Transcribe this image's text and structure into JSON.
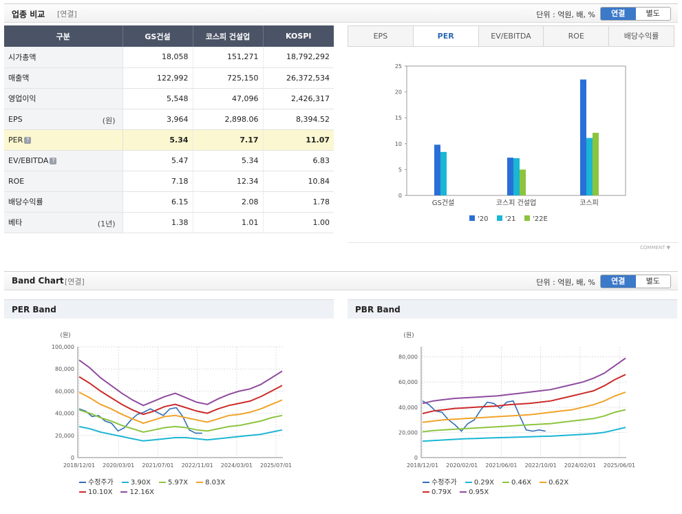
{
  "top": {
    "title": "업종 비교",
    "sub": "[연결]",
    "unit": "단위 : 억원, 배, %",
    "toggle_on": "연결",
    "toggle_off": "별도"
  },
  "table": {
    "headers": [
      "구분",
      "GS건설",
      "코스피 건설업",
      "KOSPI"
    ],
    "rows": [
      {
        "label": "시가총액",
        "unit": "",
        "q": false,
        "values": [
          "18,058",
          "151,271",
          "18,792,292"
        ]
      },
      {
        "label": "매출액",
        "unit": "",
        "q": false,
        "values": [
          "122,992",
          "725,150",
          "26,372,534"
        ]
      },
      {
        "label": "영업이익",
        "unit": "",
        "q": false,
        "values": [
          "5,548",
          "47,096",
          "2,426,317"
        ]
      },
      {
        "label": "EPS",
        "unit": "(원)",
        "q": false,
        "values": [
          "3,964",
          "2,898.06",
          "8,394.52"
        ]
      },
      {
        "label": "PER",
        "unit": "",
        "q": true,
        "values": [
          "5.34",
          "7.17",
          "11.07"
        ]
      },
      {
        "label": "EV/EBITDA",
        "unit": "",
        "q": true,
        "values": [
          "5.47",
          "5.34",
          "6.83"
        ]
      },
      {
        "label": "ROE",
        "unit": "",
        "q": false,
        "values": [
          "7.18",
          "12.34",
          "10.84"
        ]
      },
      {
        "label": "배당수익률",
        "unit": "",
        "q": false,
        "values": [
          "6.15",
          "2.08",
          "1.78"
        ]
      },
      {
        "label": "베타",
        "unit": "(1년)",
        "q": false,
        "values": [
          "1.38",
          "1.01",
          "1.00"
        ]
      }
    ],
    "q_glyph": "?"
  },
  "tabs": [
    "EPS",
    "PER",
    "EV/EBITDA",
    "ROE",
    "배당수익률"
  ],
  "active_tab": "PER",
  "comment_label": "COMMENT",
  "chart_data": [
    {
      "type": "bar",
      "categories": [
        "GS건설",
        "코스피 건설업",
        "코스피"
      ],
      "series": [
        {
          "name": "'20",
          "color": "#2a6fd8",
          "values": [
            9.8,
            7.3,
            22.4
          ]
        },
        {
          "name": "'21",
          "color": "#1ab6d3",
          "values": [
            8.4,
            7.2,
            11.1
          ]
        },
        {
          "name": "'22E",
          "color": "#8cc43f",
          "values": [
            null,
            5.0,
            12.1
          ]
        }
      ],
      "ylim": [
        0,
        25
      ],
      "yticks": [
        0,
        5,
        10,
        15,
        20,
        25
      ],
      "legend": "bottom"
    },
    {
      "type": "line",
      "title": "PER Band",
      "ylabel": "(원)",
      "xticks": [
        "2018/12/01",
        "2020/03/01",
        "2021/07/01",
        "2022/11/01",
        "2024/03/01",
        "2025/07/01"
      ],
      "yticks": [
        0,
        20000,
        40000,
        60000,
        80000,
        100000
      ],
      "ytick_labels": [
        "0",
        "20,000",
        "40,000",
        "60,000",
        "80,000",
        "100,000"
      ],
      "ylim": [
        0,
        100000
      ],
      "series": [
        {
          "name": "수정주가",
          "color": "#2f6db5",
          "values": [
            44000,
            42000,
            37000,
            38000,
            33000,
            31000,
            24000,
            27000,
            34000,
            39000,
            41000,
            44000,
            41000,
            38000,
            44000,
            45000,
            37000,
            25000,
            22000,
            22000
          ]
        },
        {
          "name": "3.90X",
          "color": "#1ab6d3",
          "values": [
            28000,
            26000,
            23000,
            21000,
            19000,
            17000,
            15000,
            16000,
            17000,
            18000,
            18000,
            17000,
            16000,
            17000,
            18000,
            19000,
            20000,
            21000,
            23000,
            25000
          ]
        },
        {
          "name": "5.97X",
          "color": "#8cc43f",
          "values": [
            43000,
            40000,
            36000,
            33000,
            29000,
            26000,
            23000,
            25000,
            27000,
            28000,
            27000,
            25000,
            24000,
            26000,
            28000,
            29000,
            31000,
            33000,
            36000,
            38000
          ]
        },
        {
          "name": "8.03X",
          "color": "#f0a32a",
          "values": [
            59000,
            54000,
            48000,
            44000,
            39000,
            35000,
            31000,
            34000,
            37000,
            38000,
            36000,
            34000,
            32000,
            35000,
            38000,
            39000,
            41000,
            44000,
            48000,
            52000
          ]
        },
        {
          "name": "10.10X",
          "color": "#cc2a2a",
          "values": [
            73000,
            67000,
            60000,
            54000,
            48000,
            43000,
            39000,
            42000,
            46000,
            48000,
            45000,
            42000,
            40000,
            44000,
            47000,
            49000,
            51000,
            55000,
            60000,
            65000
          ]
        },
        {
          "name": "12.16X",
          "color": "#8e4b9e",
          "values": [
            88000,
            81000,
            72000,
            65000,
            58000,
            52000,
            47000,
            51000,
            55000,
            58000,
            54000,
            50000,
            48000,
            53000,
            57000,
            60000,
            62000,
            66000,
            72000,
            78000
          ]
        }
      ],
      "legend": "bottom"
    },
    {
      "type": "line",
      "title": "PBR Band",
      "ylabel": "(원)",
      "xticks": [
        "2018/12/01",
        "2020/02/01",
        "2021/06/01",
        "2022/10/01",
        "2024/02/01",
        "2025/06/01"
      ],
      "yticks": [
        0,
        20000,
        40000,
        60000,
        80000
      ],
      "ytick_labels": [
        "0",
        "20,000",
        "40,000",
        "60,000",
        "80,000"
      ],
      "ylim": [
        0,
        88000
      ],
      "series": [
        {
          "name": "수정주가",
          "color": "#2f6db5",
          "values": [
            45000,
            42000,
            37000,
            36000,
            30000,
            26000,
            21000,
            27000,
            30000,
            38000,
            44000,
            43000,
            39000,
            44000,
            45000,
            33000,
            22000,
            21000,
            22000,
            21000
          ]
        },
        {
          "name": "0.29X",
          "color": "#1ab6d3",
          "values": [
            13000,
            13500,
            14000,
            14500,
            15000,
            15200,
            15500,
            15800,
            16000,
            16300,
            16500,
            16800,
            17000,
            17500,
            18000,
            18500,
            19000,
            20000,
            22000,
            24000
          ]
        },
        {
          "name": "0.46X",
          "color": "#8cc43f",
          "values": [
            20500,
            21500,
            22000,
            22500,
            23000,
            23500,
            24000,
            24500,
            25000,
            25500,
            26000,
            26500,
            27000,
            28000,
            29000,
            30000,
            31000,
            33000,
            36000,
            38000
          ]
        },
        {
          "name": "0.62X",
          "color": "#f0a32a",
          "values": [
            28000,
            29000,
            30000,
            30500,
            31000,
            31500,
            32000,
            32500,
            33000,
            33500,
            34000,
            35000,
            36000,
            37000,
            38000,
            40000,
            42000,
            45000,
            49000,
            52000
          ]
        },
        {
          "name": "0.79X",
          "color": "#cc2a2a",
          "values": [
            35000,
            37000,
            38000,
            39000,
            39500,
            40000,
            40500,
            41000,
            42000,
            42500,
            43000,
            44000,
            45000,
            47000,
            49000,
            51000,
            53000,
            57000,
            62000,
            66000
          ]
        },
        {
          "name": "0.95X",
          "color": "#8e4b9e",
          "values": [
            43000,
            45000,
            46000,
            47000,
            47500,
            48000,
            48500,
            49000,
            50000,
            51000,
            52000,
            53000,
            54000,
            56000,
            58000,
            60000,
            63000,
            67000,
            73000,
            79000
          ]
        }
      ],
      "legend": "bottom"
    }
  ],
  "band": {
    "title": "Band Chart",
    "sub": "[연결]",
    "unit": "단위 : 억원, 배, %",
    "toggle_on": "연결",
    "toggle_off": "별도"
  }
}
